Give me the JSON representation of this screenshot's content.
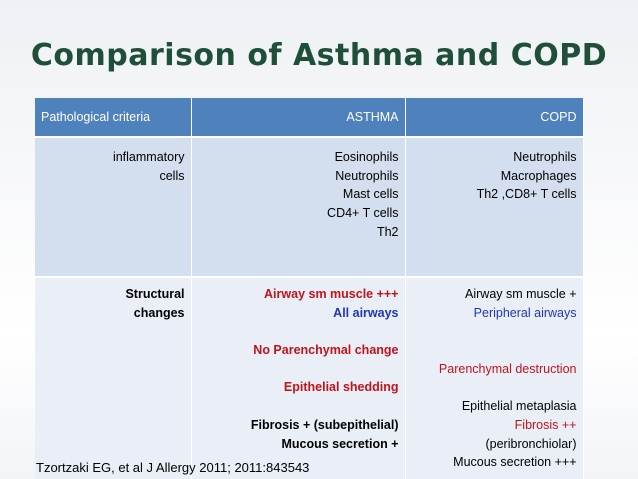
{
  "title": "Comparison of Asthma and COPD",
  "table": {
    "headers": [
      "Pathological criteria",
      "ASTHMA",
      "COPD"
    ],
    "rows": [
      {
        "criteria": [
          "inflammatory",
          "cells"
        ],
        "asthma": [
          "Eosinophils",
          "Neutrophils",
          "Mast cells",
          "CD4+ T cells",
          "Th2"
        ],
        "copd": [
          "Neutrophils",
          "Macrophages",
          "Th2  ,CD8+ T cells"
        ]
      },
      {
        "criteria": [
          "Structural",
          "changes"
        ],
        "asthma": [
          "Airway sm muscle +++",
          "All airways",
          "No Parenchymal change",
          "Epithelial shedding",
          "Fibrosis + (subepithelial)",
          "Mucous secretion +"
        ],
        "copd": [
          "Airway sm muscle +",
          "Peripheral airways",
          "Parenchymal destruction",
          "Epithelial metaplasia",
          "Fibrosis ++",
          "(peribronchiolar)",
          "Mucous secretion +++"
        ]
      }
    ]
  },
  "colors": {
    "title": "#1f4e39",
    "header_bg": "#4f81bd",
    "row1_bg": "#d3dfee",
    "row2_bg": "#e9eef7",
    "red_text": "#c0141b",
    "blue_text": "#1f37b4"
  },
  "citation": "Tzortzaki EG, et al J Allergy 2011; 2011:843543"
}
